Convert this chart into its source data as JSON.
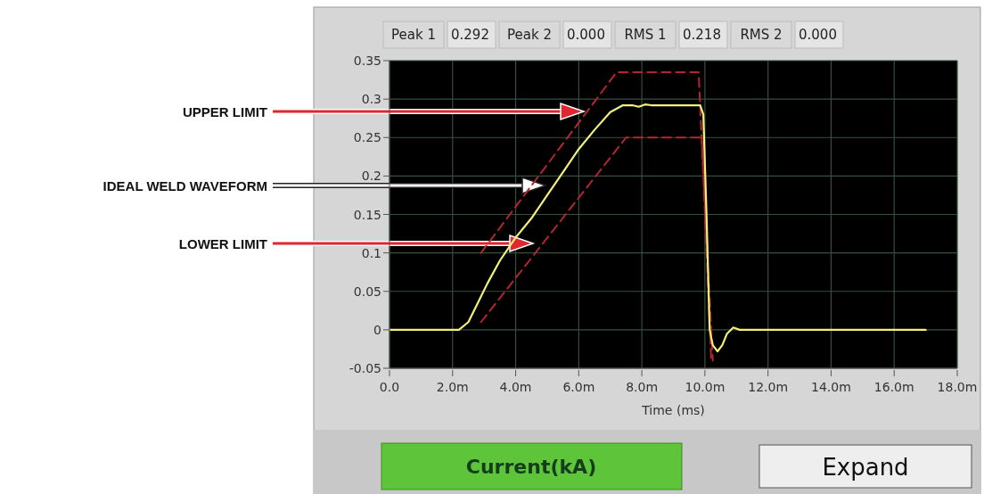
{
  "chart_data": {
    "type": "line",
    "xlabel": "Time (ms)",
    "xlim": [
      0,
      18
    ],
    "ylim": [
      -0.05,
      0.35
    ],
    "xticks": [
      {
        "value": 0,
        "label": "0.0"
      },
      {
        "value": 2,
        "label": "2.0m"
      },
      {
        "value": 4,
        "label": "4.0m"
      },
      {
        "value": 6,
        "label": "6.0m"
      },
      {
        "value": 8,
        "label": "8.0m"
      },
      {
        "value": 10,
        "label": "10.0m"
      },
      {
        "value": 12,
        "label": "12.0m"
      },
      {
        "value": 14,
        "label": "14.0m"
      },
      {
        "value": 16,
        "label": "16.0m"
      },
      {
        "value": 18,
        "label": "18.0m"
      }
    ],
    "yticks": [
      -0.05,
      0,
      0.05,
      0.1,
      0.15,
      0.2,
      0.25,
      0.3,
      0.35
    ],
    "grid": true,
    "series": [
      {
        "color": "#b3262e",
        "line_style": "dashed",
        "x": [
          2.9,
          7.2,
          9.8,
          9.95,
          10.2
        ],
        "values": [
          0.1,
          0.335,
          0.335,
          0.2,
          -0.04
        ]
      },
      {
        "color": "#b3262e",
        "line_style": "dashed",
        "x": [
          2.9,
          7.5,
          9.9,
          10.05,
          10.25
        ],
        "values": [
          0.01,
          0.25,
          0.25,
          0.12,
          -0.04
        ]
      },
      {
        "color": "#f2f07a",
        "line_style": "solid",
        "x": [
          0,
          2.2,
          2.5,
          2.8,
          3.1,
          3.5,
          4.0,
          4.5,
          5.0,
          5.5,
          6.0,
          6.5,
          7.0,
          7.4,
          7.7,
          7.9,
          8.1,
          8.3,
          9.85,
          9.95,
          10.05,
          10.15,
          10.25,
          10.4,
          10.55,
          10.7,
          10.9,
          11.1,
          17.0
        ],
        "values": [
          0,
          0,
          0.01,
          0.035,
          0.06,
          0.09,
          0.12,
          0.145,
          0.175,
          0.205,
          0.235,
          0.26,
          0.283,
          0.292,
          0.292,
          0.29,
          0.293,
          0.292,
          0.292,
          0.28,
          0.15,
          0,
          -0.02,
          -0.028,
          -0.02,
          -0.005,
          0.003,
          0,
          0
        ]
      }
    ],
    "annotations": [
      "UPPER LIMIT",
      "IDEAL WELD WAVEFORM",
      "LOWER LIMIT",
      "Peak 1",
      "0.292",
      "Peak 2",
      "0.000",
      "RMS 1",
      "0.218",
      "RMS 2",
      "0.000",
      "Current(kA)",
      "Expand"
    ]
  }
}
